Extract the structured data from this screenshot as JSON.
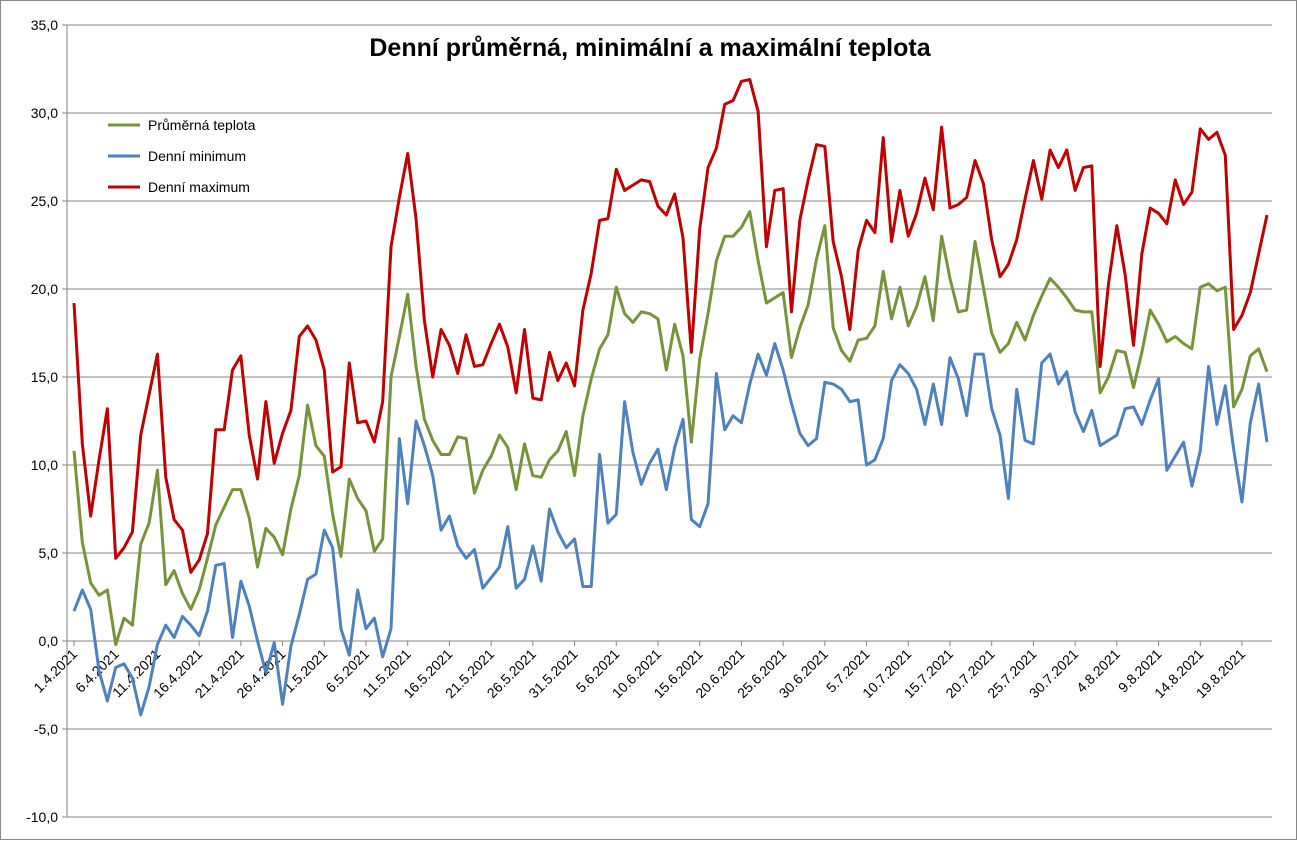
{
  "chart_data": {
    "type": "line",
    "title": "Denní průměrná, minimální a maximální teplota",
    "categories": [
      "1.4.2021",
      null,
      null,
      null,
      null,
      "6.4.2021",
      null,
      null,
      null,
      null,
      "11.4.2021",
      null,
      null,
      null,
      null,
      "16.4.2021",
      null,
      null,
      null,
      null,
      "21.4.2021",
      null,
      null,
      null,
      null,
      "26.4.2021",
      null,
      null,
      null,
      null,
      "1.5.2021",
      null,
      null,
      null,
      null,
      "6.5.2021",
      null,
      null,
      null,
      null,
      "11.5.2021",
      null,
      null,
      null,
      null,
      "16.5.2021",
      null,
      null,
      null,
      null,
      "21.5.2021",
      null,
      null,
      null,
      null,
      "26.5.2021",
      null,
      null,
      null,
      null,
      "31.5.2021",
      null,
      null,
      null,
      null,
      "5.6.2021",
      null,
      null,
      null,
      null,
      "10.6.2021",
      null,
      null,
      null,
      null,
      "15.6.2021",
      null,
      null,
      null,
      null,
      "20.6.2021",
      null,
      null,
      null,
      null,
      "25.6.2021",
      null,
      null,
      null,
      null,
      "30.6.2021",
      null,
      null,
      null,
      null,
      "5.7.2021",
      null,
      null,
      null,
      null,
      "10.7.2021",
      null,
      null,
      null,
      null,
      "15.7.2021",
      null,
      null,
      null,
      null,
      "20.7.2021",
      null,
      null,
      null,
      null,
      "25.7.2021",
      null,
      null,
      null,
      null,
      "30.7.2021",
      null,
      null,
      null,
      null,
      "4.8.2021",
      null,
      null,
      null,
      null,
      "9.8.2021",
      null,
      null,
      null,
      null,
      "14.8.2021",
      null,
      null,
      null,
      null,
      "19.8.2021",
      null,
      null,
      null
    ],
    "series": [
      {
        "name": "Průměrná teplota",
        "color": "#77933c",
        "values": [
          10.8,
          5.6,
          3.3,
          2.6,
          2.9,
          -0.2,
          1.3,
          0.9,
          5.5,
          6.7,
          9.7,
          3.2,
          4.0,
          2.7,
          1.8,
          2.9,
          4.7,
          6.6,
          7.6,
          8.6,
          8.6,
          7.0,
          4.2,
          6.4,
          5.9,
          4.9,
          7.5,
          9.4,
          13.4,
          11.1,
          10.5,
          7.2,
          4.8,
          9.2,
          8.1,
          7.4,
          5.1,
          5.8,
          15.0,
          17.3,
          19.7,
          15.6,
          12.6,
          11.4,
          10.6,
          10.6,
          11.6,
          11.5,
          8.4,
          9.7,
          10.5,
          11.7,
          11.0,
          8.6,
          11.2,
          9.4,
          9.3,
          10.3,
          10.8,
          11.9,
          9.4,
          12.8,
          14.9,
          16.6,
          17.4,
          20.1,
          18.6,
          18.1,
          18.7,
          18.6,
          18.3,
          15.4,
          18.0,
          16.2,
          11.3,
          16.0,
          18.6,
          21.6,
          23.0,
          23.0,
          23.5,
          24.4,
          21.6,
          19.2,
          19.5,
          19.8,
          16.1,
          17.8,
          19.1,
          21.7,
          23.6,
          17.8,
          16.5,
          15.9,
          17.1,
          17.2,
          17.9,
          21.0,
          18.3,
          20.1,
          17.9,
          19.0,
          20.7,
          18.2,
          23.0,
          20.6,
          18.7,
          18.8,
          22.7,
          20.1,
          17.5,
          16.4,
          16.9,
          18.1,
          17.1,
          18.5,
          19.6,
          20.6,
          20.1,
          19.5,
          18.8,
          18.7,
          18.7,
          14.1,
          15.0,
          16.5,
          16.4,
          14.4,
          16.4,
          18.8,
          18.0,
          17.0,
          17.3,
          16.9,
          16.6,
          20.1,
          20.3,
          19.9,
          20.1,
          13.3,
          14.3,
          16.2,
          16.6,
          15.3
        ]
      },
      {
        "name": "Denní minimum",
        "color": "#4f81bd",
        "values": [
          1.7,
          2.9,
          1.8,
          -1.7,
          -3.4,
          -1.5,
          -1.3,
          -2.1,
          -4.2,
          -2.6,
          -0.2,
          0.9,
          0.2,
          1.4,
          0.9,
          0.3,
          1.7,
          4.3,
          4.4,
          0.2,
          3.4,
          2.0,
          0.0,
          -1.8,
          -0.1,
          -3.6,
          -0.3,
          1.5,
          3.5,
          3.8,
          6.3,
          5.3,
          0.7,
          -0.8,
          2.9,
          0.7,
          1.3,
          -0.9,
          0.7,
          11.5,
          7.8,
          12.5,
          11.1,
          9.4,
          6.3,
          7.1,
          5.4,
          4.7,
          5.2,
          3.0,
          3.6,
          4.2,
          6.5,
          3.0,
          3.5,
          5.4,
          3.4,
          7.5,
          6.2,
          5.3,
          5.8,
          3.1,
          3.1,
          10.6,
          6.7,
          7.2,
          13.6,
          10.7,
          8.9,
          10.1,
          10.9,
          8.6,
          11.0,
          12.6,
          6.9,
          6.5,
          7.8,
          15.2,
          12.0,
          12.8,
          12.4,
          14.6,
          16.3,
          15.1,
          16.9,
          15.4,
          13.5,
          11.8,
          11.1,
          11.5,
          14.7,
          14.6,
          14.3,
          13.6,
          13.7,
          10.0,
          10.3,
          11.5,
          14.8,
          15.7,
          15.2,
          14.3,
          12.3,
          14.6,
          12.3,
          16.1,
          14.9,
          12.8,
          16.3,
          16.3,
          13.2,
          11.7,
          8.1,
          14.3,
          11.4,
          11.2,
          15.8,
          16.3,
          14.6,
          15.3,
          13.0,
          11.9,
          13.1,
          11.1,
          11.4,
          11.7,
          13.2,
          13.3,
          12.3,
          13.7,
          14.9,
          9.7,
          10.5,
          11.3,
          8.8,
          10.8,
          15.6,
          12.3,
          14.5,
          10.9,
          7.9,
          12.4,
          14.6,
          11.3
        ]
      },
      {
        "name": "Denní maximum",
        "color": "#c00000",
        "values": [
          19.2,
          11.2,
          7.1,
          10.3,
          13.2,
          4.7,
          5.3,
          6.2,
          11.7,
          14.0,
          16.3,
          9.3,
          6.9,
          6.3,
          3.9,
          4.6,
          6.1,
          12.0,
          12.0,
          15.4,
          16.2,
          11.7,
          9.2,
          13.6,
          10.1,
          11.8,
          13.1,
          17.3,
          17.9,
          17.1,
          15.4,
          9.6,
          9.9,
          15.8,
          12.4,
          12.5,
          11.3,
          13.6,
          22.4,
          25.2,
          27.7,
          24.0,
          18.2,
          15.0,
          17.7,
          16.8,
          15.2,
          17.4,
          15.6,
          15.7,
          16.9,
          18.0,
          16.7,
          14.1,
          17.7,
          13.8,
          13.7,
          16.4,
          14.8,
          15.8,
          14.5,
          18.8,
          20.9,
          23.9,
          24.0,
          26.8,
          25.6,
          25.9,
          26.2,
          26.1,
          24.7,
          24.2,
          25.4,
          22.9,
          16.4,
          23.4,
          26.9,
          28.0,
          30.5,
          30.7,
          31.8,
          31.9,
          30.1,
          22.4,
          25.6,
          25.7,
          18.7,
          23.9,
          26.2,
          28.2,
          28.1,
          22.7,
          20.7,
          17.7,
          22.2,
          23.9,
          23.2,
          28.6,
          22.7,
          25.6,
          23.0,
          24.3,
          26.3,
          24.5,
          29.2,
          24.6,
          24.8,
          25.2,
          27.3,
          26.0,
          22.8,
          20.7,
          21.4,
          22.8,
          25.1,
          27.3,
          25.1,
          27.9,
          26.9,
          27.9,
          25.6,
          26.9,
          27.0,
          15.6,
          20.3,
          23.6,
          20.8,
          16.8,
          22.0,
          24.6,
          24.3,
          23.7,
          26.2,
          24.8,
          25.5,
          29.1,
          28.5,
          28.9,
          27.6,
          17.7,
          18.5,
          19.8,
          22.0,
          24.2
        ]
      }
    ],
    "ylim": [
      -10,
      35
    ],
    "yticks": [
      {
        "value": -10,
        "label": "-10,0"
      },
      {
        "value": -5,
        "label": "-5,0"
      },
      {
        "value": 0,
        "label": "0,0"
      },
      {
        "value": 5,
        "label": "5,0"
      },
      {
        "value": 10,
        "label": "10,0"
      },
      {
        "value": 15,
        "label": "15,0"
      },
      {
        "value": 20,
        "label": "20,0"
      },
      {
        "value": 25,
        "label": "25,0"
      },
      {
        "value": 30,
        "label": "30,0"
      },
      {
        "value": 35,
        "label": "35,0"
      }
    ],
    "grid": true,
    "legend": "top-left"
  }
}
